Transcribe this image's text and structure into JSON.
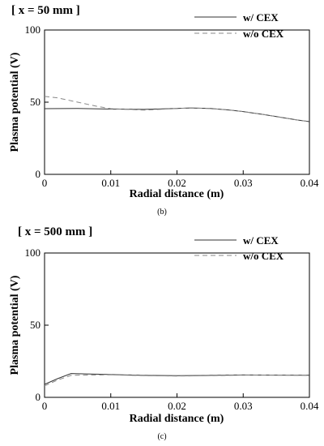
{
  "chart_data": [
    {
      "type": "line",
      "title": "[ x = 50 mm ]",
      "xlabel": "Radial distance (m)",
      "ylabel": "Plasma potential (V)",
      "xlim": [
        0,
        0.04
      ],
      "ylim": [
        0,
        100
      ],
      "x_ticks": [
        "0",
        "0.01",
        "0.02",
        "0.03",
        "0.04"
      ],
      "y_ticks": [
        "0",
        "50",
        "100"
      ],
      "caption": "(b)",
      "legend_position": "top-right",
      "series": [
        {
          "name": "w/ CEX",
          "style": "solid",
          "color": "#333333",
          "x": [
            0,
            0.005,
            0.01,
            0.015,
            0.02,
            0.022,
            0.025,
            0.028,
            0.03,
            0.033,
            0.035,
            0.038,
            0.04
          ],
          "y": [
            45.5,
            45.6,
            45.2,
            45.0,
            45.6,
            46.0,
            45.6,
            44.5,
            43.5,
            41.5,
            40.0,
            37.8,
            36.5
          ]
        },
        {
          "name": "w/o CEX",
          "style": "dashed",
          "color": "#888888",
          "x": [
            0,
            0.002,
            0.005,
            0.008,
            0.01,
            0.015,
            0.02,
            0.022,
            0.025,
            0.028,
            0.03,
            0.033,
            0.035,
            0.038,
            0.04
          ],
          "y": [
            54,
            53,
            50,
            47,
            45.5,
            44.5,
            45.6,
            46.0,
            45.6,
            44.5,
            43.5,
            41.5,
            40.0,
            37.8,
            36.5
          ]
        }
      ]
    },
    {
      "type": "line",
      "title": "[ x = 500 mm ]",
      "xlabel": "Radial distance (m)",
      "ylabel": "Plasma potential (V)",
      "xlim": [
        0,
        0.04
      ],
      "ylim": [
        0,
        100
      ],
      "x_ticks": [
        "0",
        "0.01",
        "0.02",
        "0.03",
        "0.04"
      ],
      "y_ticks": [
        "0",
        "50",
        "100"
      ],
      "caption": "(c)",
      "legend_position": "top-right",
      "series": [
        {
          "name": "w/ CEX",
          "style": "solid",
          "color": "#333333",
          "x": [
            0,
            0.002,
            0.004,
            0.007,
            0.01,
            0.015,
            0.02,
            0.025,
            0.03,
            0.035,
            0.04
          ],
          "y": [
            9,
            13,
            16.5,
            16.2,
            15.8,
            15.2,
            15.0,
            15.2,
            15.5,
            15.4,
            15.3
          ]
        },
        {
          "name": "w/o CEX",
          "style": "dashed",
          "color": "#888888",
          "x": [
            0,
            0.002,
            0.004,
            0.007,
            0.01,
            0.015,
            0.02,
            0.025,
            0.03,
            0.035,
            0.04
          ],
          "y": [
            8,
            12,
            15.2,
            15.5,
            15.6,
            15.0,
            14.8,
            15.0,
            15.4,
            15.4,
            15.3
          ]
        }
      ]
    }
  ]
}
